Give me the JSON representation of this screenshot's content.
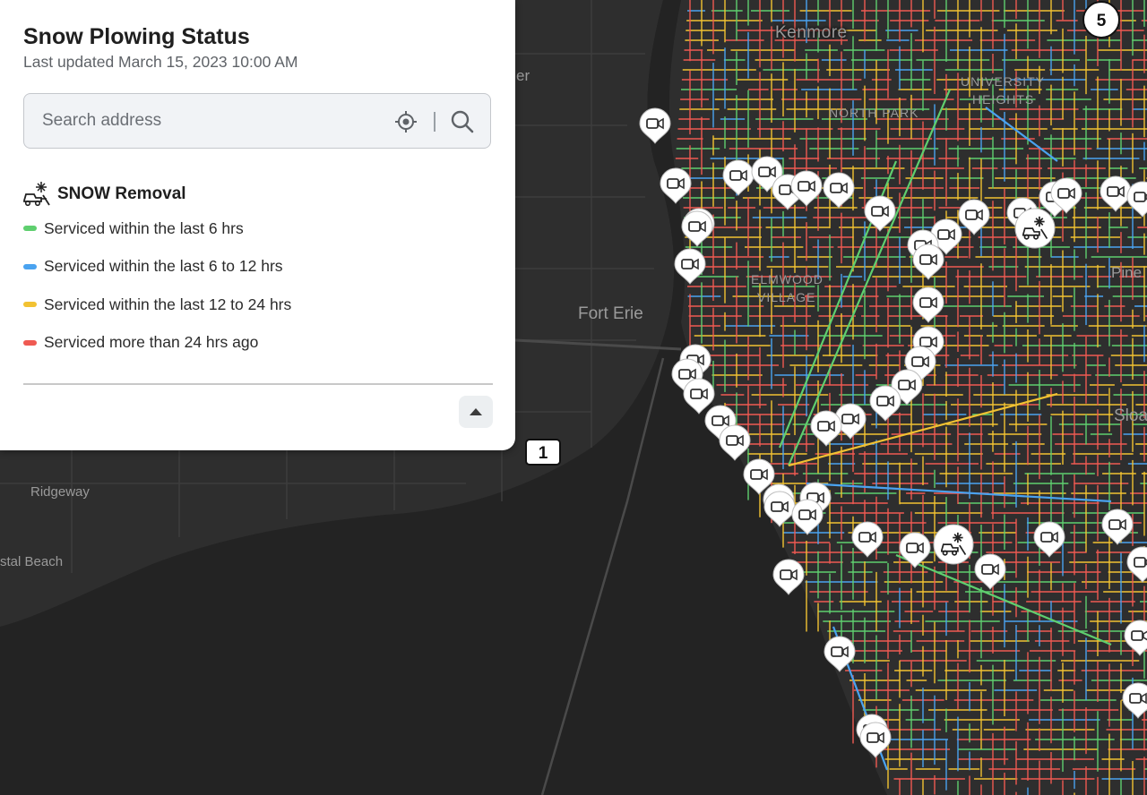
{
  "panel": {
    "title": "Snow Plowing Status",
    "last_updated": "Last updated March 15, 2023 10:00 AM",
    "search": {
      "placeholder": "Search address"
    },
    "legend": {
      "title": "SNOW Removal",
      "icon": "snowplow-icon",
      "items": [
        {
          "label": "Serviced within the last 6 hrs",
          "color": "#5fcf6f"
        },
        {
          "label": "Serviced within the last 6 to 12 hrs",
          "color": "#4aa3f0"
        },
        {
          "label": "Serviced within the last 12 to 24 hrs",
          "color": "#f2c232"
        },
        {
          "label": "Serviced more than 24 hrs ago",
          "color": "#ef5a52"
        }
      ]
    }
  },
  "map": {
    "labels": {
      "kenmore": "Kenmore",
      "university_heights": "UNIVERSITY\nHEIGHTS",
      "north_park": "NORTH PARK",
      "elmwood_village": "ELMWOOD\nVILLAGE",
      "fort_erie": "Fort Erie",
      "ridgeway": "Ridgeway",
      "crystal_beach": "stal Beach",
      "pine": "Pine",
      "sloan": "Sloa",
      "er": "er"
    },
    "shields": {
      "route_1": "1",
      "route_5": "5"
    },
    "colors": {
      "water": "#232323",
      "land": "#2e2e2e",
      "road": "#3b3b3b"
    }
  }
}
